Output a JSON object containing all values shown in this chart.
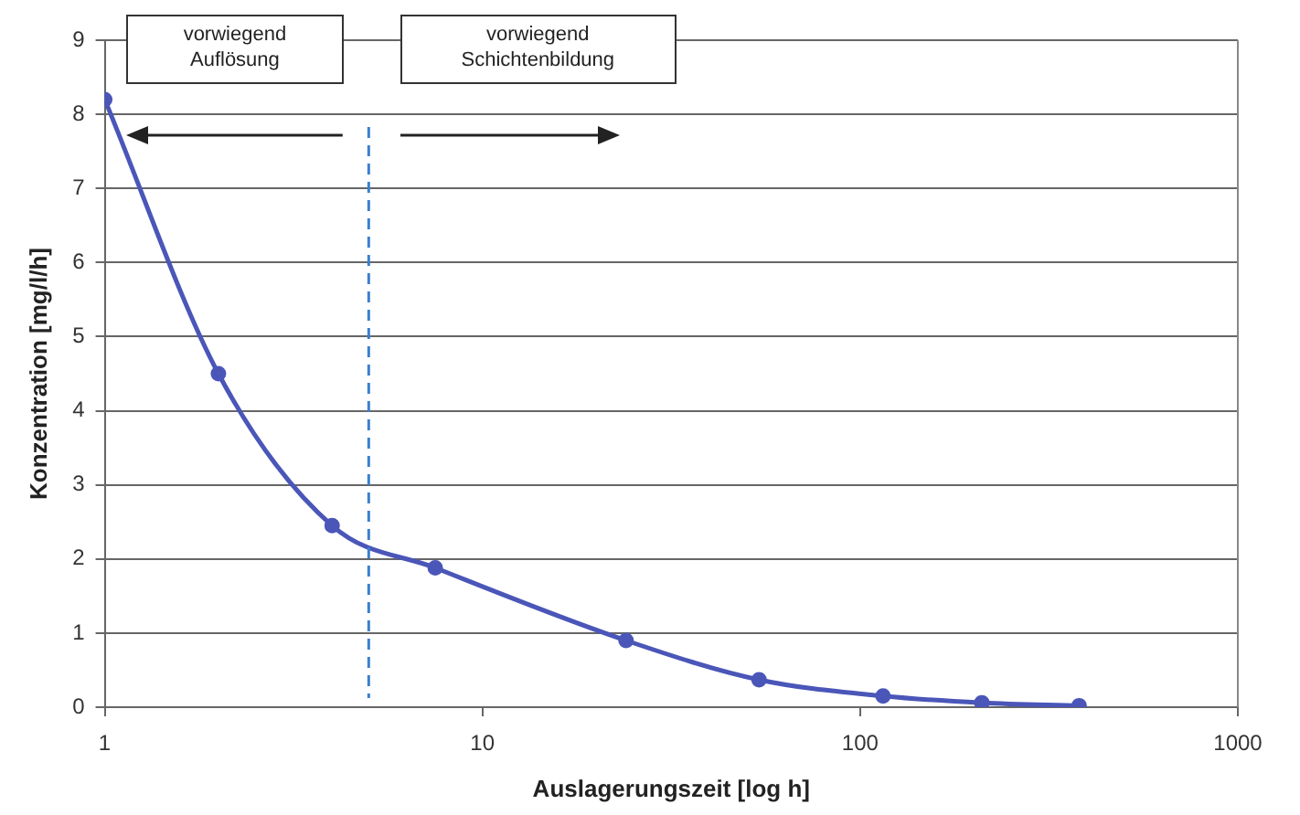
{
  "chart_data": {
    "type": "line",
    "xlabel": "Auslagerungszeit [log h]",
    "ylabel": "Konzentration [mg/l/h]",
    "annotations": [
      "vorwiegend Auflösung",
      "vorwiegend Schichtenbildung"
    ],
    "x": [
      1,
      2,
      4,
      7.5,
      24,
      54,
      115,
      210,
      380
    ],
    "series": [
      {
        "color": "#4a56b8",
        "values": [
          8.2,
          4.5,
          2.45,
          1.88,
          0.9,
          0.37,
          0.15,
          0.06,
          0.02
        ]
      }
    ],
    "log": "x",
    "xlim": [
      1,
      1000
    ],
    "xticks": [
      1,
      10,
      100,
      1000
    ],
    "ylim": [
      0,
      9
    ],
    "yticks": [
      0,
      1,
      2,
      3,
      4,
      5,
      6,
      7,
      8,
      9
    ],
    "grid": "y",
    "legend": false,
    "marker": "circle",
    "line_style": "solid",
    "ref_lines": [
      {
        "axis": "x",
        "value": 5,
        "color": "#3a7fd0",
        "line_style": "dashed"
      }
    ]
  }
}
